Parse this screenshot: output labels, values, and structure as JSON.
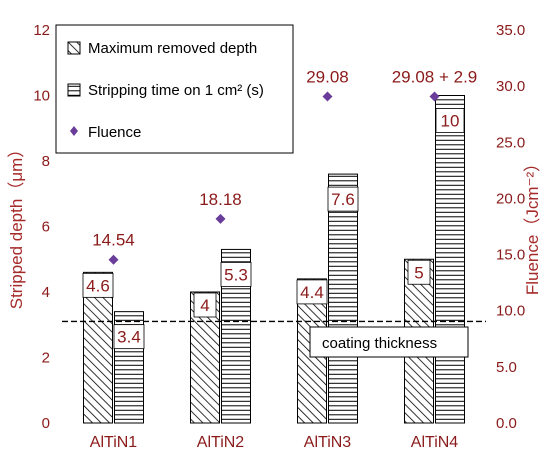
{
  "chart_data": {
    "type": "bar",
    "categories": [
      "AlTiN1",
      "AlTiN2",
      "AlTiN3",
      "AlTiN4"
    ],
    "series": [
      {
        "name": "Maximum removed depth",
        "axis": "left",
        "values": [
          4.6,
          4,
          4.4,
          5
        ],
        "value_labels": [
          "4.6",
          "4",
          "4.4",
          "5"
        ],
        "pattern": "diagonal-hatch"
      },
      {
        "name": "Stripping time on 1 cm² (s)",
        "axis": "left",
        "values": [
          3.4,
          5.3,
          7.6,
          10
        ],
        "value_labels": [
          "3.4",
          "5.3",
          "7.6",
          "10"
        ],
        "pattern": "horizontal-lines"
      },
      {
        "name": "Fluence",
        "axis": "right",
        "type": "scatter",
        "marker": "diamond",
        "values": [
          14.54,
          18.18,
          29.08,
          29.08
        ],
        "value_labels": [
          "14.54",
          "18.18",
          "29.08",
          "29.08 + 2.9"
        ]
      }
    ],
    "ylabel": "Stripped depth（μm）",
    "ylim": [
      0,
      12
    ],
    "yticks": [
      "0",
      "2",
      "4",
      "6",
      "8",
      "10",
      "12"
    ],
    "y2label": "Fluence（Jcm⁻²）",
    "y2lim": [
      0,
      35
    ],
    "y2ticks": [
      "0.0",
      "5.0",
      "10.0",
      "15.0",
      "20.0",
      "25.0",
      "30.0",
      "35.0"
    ],
    "annotation": {
      "text": "coating thickness",
      "y": 3.1,
      "style": "dashed"
    },
    "legend_position": "top-left",
    "grid": false,
    "colors": {
      "tick_text": "#8b1a1a",
      "axis_title": "#a52a2a",
      "fluence_marker": "#6a3d9a",
      "bar_stroke": "#000000"
    }
  }
}
